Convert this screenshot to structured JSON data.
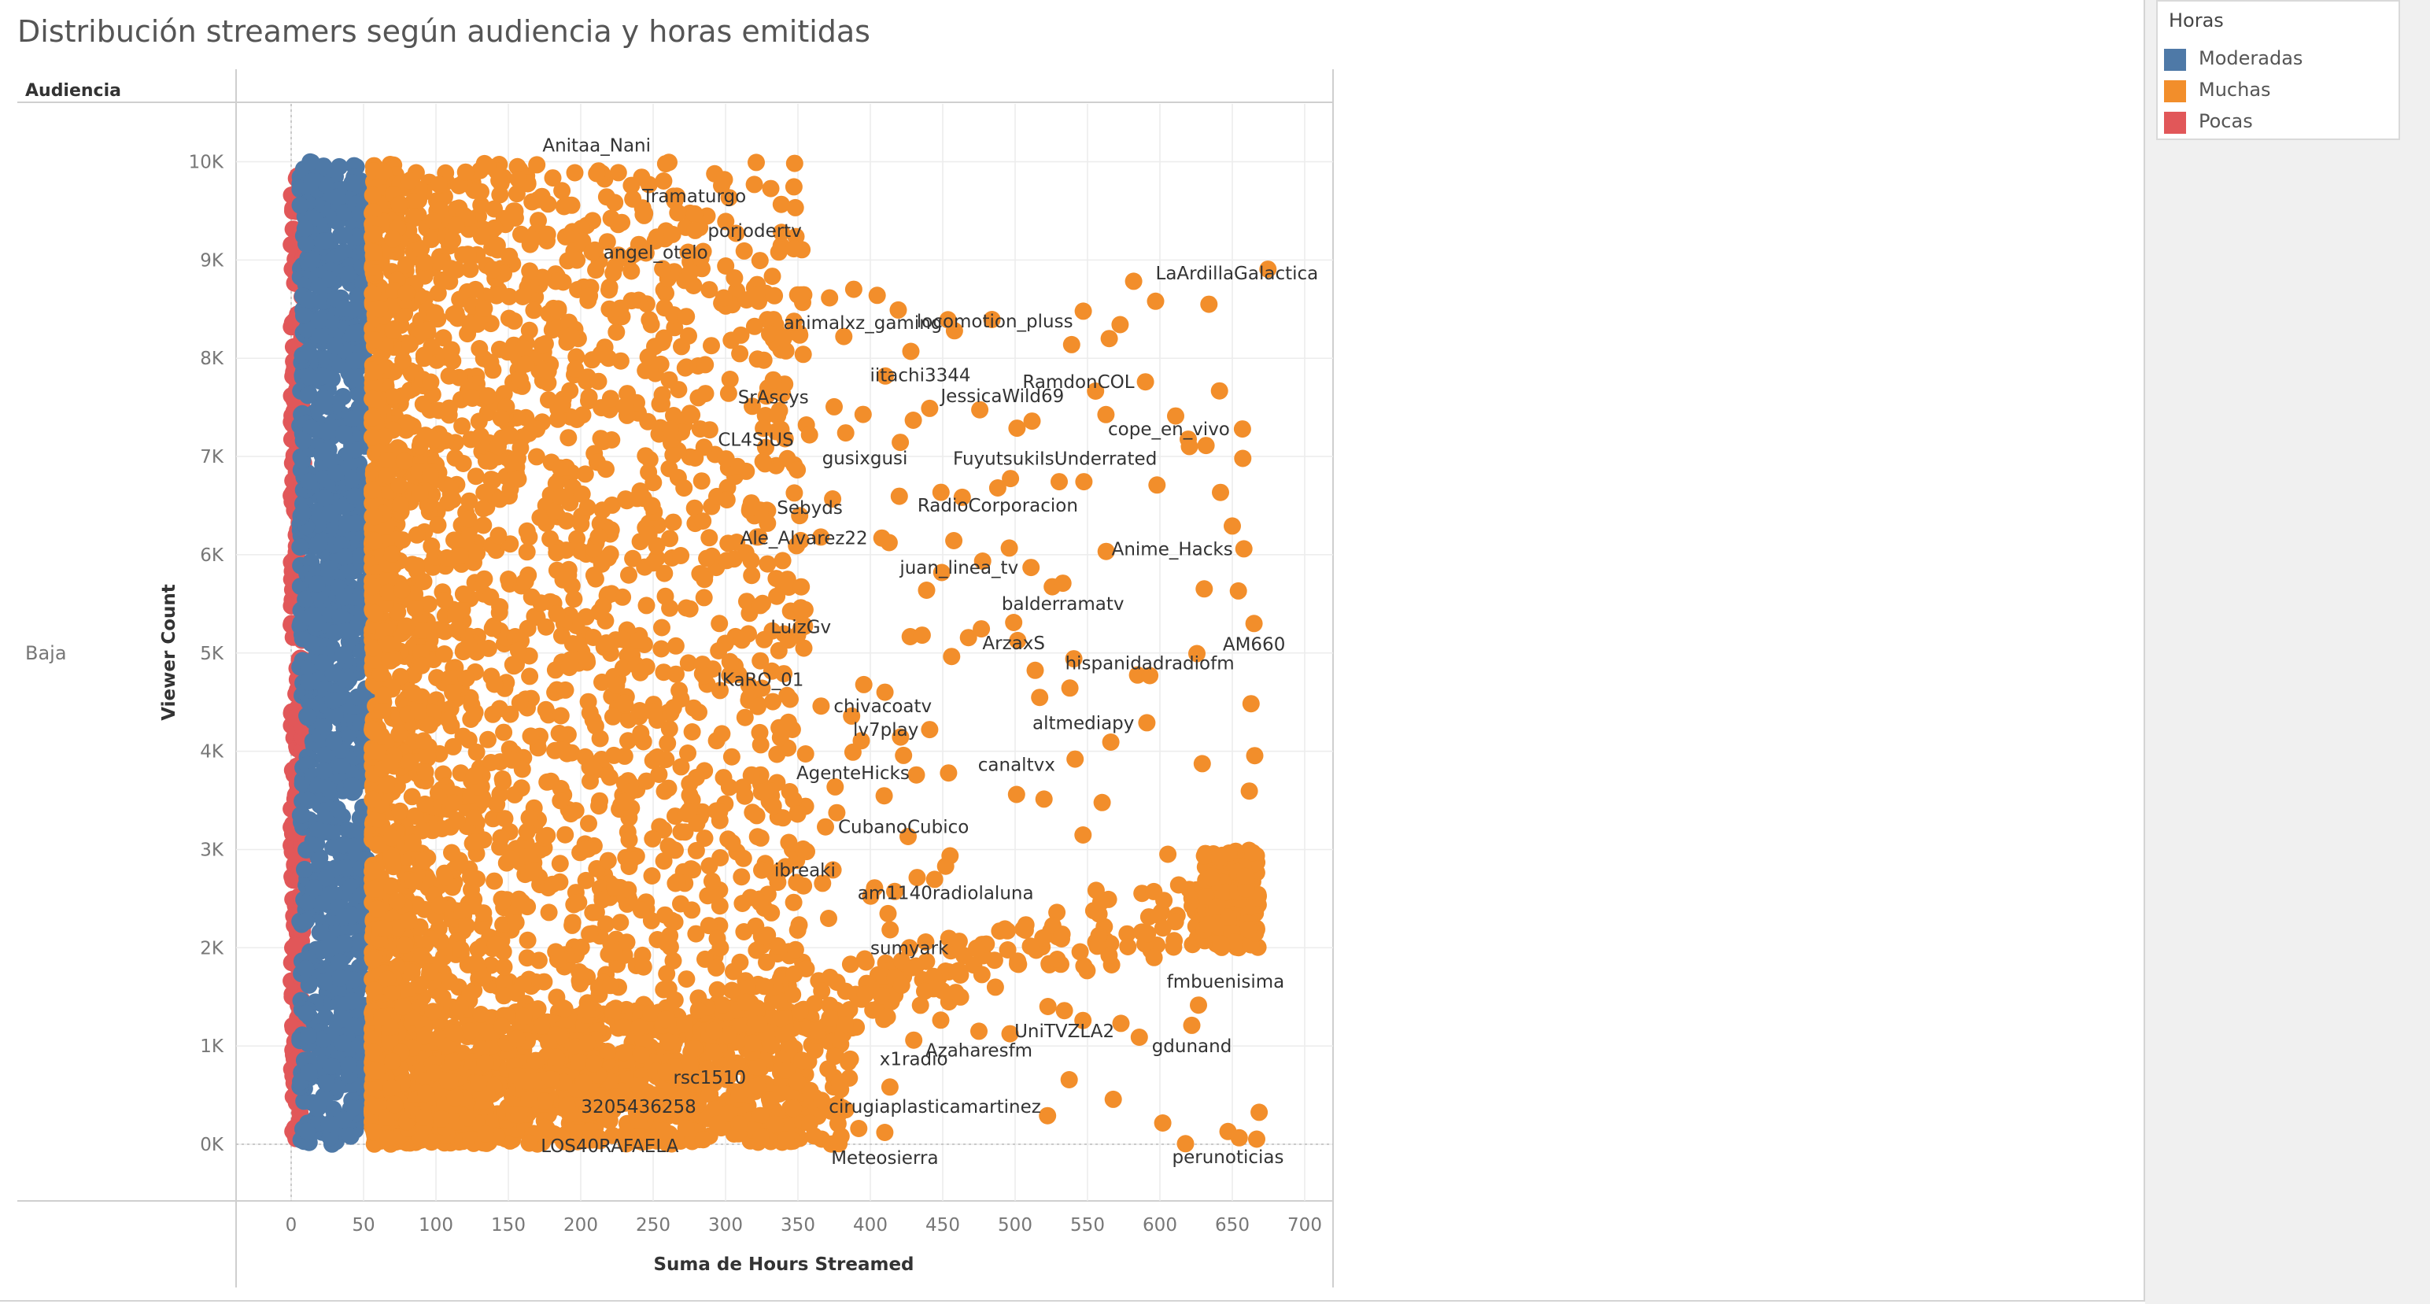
{
  "title": "Distribución streamers según audiencia y horas emitidas",
  "legend": {
    "title": "Horas",
    "items": [
      {
        "label": "Moderadas",
        "color": "#4e79a7"
      },
      {
        "label": "Muchas",
        "color": "#f28e2b"
      },
      {
        "label": "Pocas",
        "color": "#e15759"
      }
    ]
  },
  "row_header": "Audiencia",
  "row_value": "Baja",
  "chart_data": {
    "type": "scatter",
    "xlabel": "Suma de Hours Streamed",
    "ylabel": "Viewer Count",
    "xlim": [
      -20,
      720
    ],
    "ylim": [
      -400,
      10600
    ],
    "x_ticks": [
      0,
      50,
      100,
      150,
      200,
      250,
      300,
      350,
      400,
      450,
      500,
      550,
      600,
      650,
      700
    ],
    "x_tick_labels": [
      "0",
      "50",
      "100",
      "150",
      "200",
      "250",
      "300",
      "350",
      "400",
      "450",
      "500",
      "550",
      "600",
      "650",
      "700"
    ],
    "y_ticks": [
      0,
      1000,
      2000,
      3000,
      4000,
      5000,
      6000,
      7000,
      8000,
      9000,
      10000
    ],
    "y_tick_labels": [
      "0K",
      "1K",
      "2K",
      "3K",
      "4K",
      "5K",
      "6K",
      "7K",
      "8K",
      "9K",
      "10K"
    ],
    "grid": true,
    "legend_position": "top-right (side panel)",
    "series": [
      {
        "name": "Pocas",
        "color": "#e15759",
        "x_range": [
          0,
          9
        ],
        "y_range": [
          0,
          9900
        ],
        "density": "very high"
      },
      {
        "name": "Moderadas",
        "color": "#4e79a7",
        "x_range": [
          4,
          55
        ],
        "y_range": [
          0,
          10000
        ],
        "density": "very high"
      },
      {
        "name": "Muchas",
        "color": "#f28e2b",
        "x_range": [
          55,
          680
        ],
        "y_range": [
          0,
          10000
        ],
        "density": "high, decreasing with hours"
      }
    ],
    "labeled_points": [
      {
        "label": "Anitaa_Nani",
        "x": 211,
        "y": 9880
      },
      {
        "label": "Tramaturgo",
        "x": 236,
        "y": 9620
      },
      {
        "label": "porjodertv",
        "x": 279,
        "y": 9300
      },
      {
        "label": "angel_otelo",
        "x": 208,
        "y": 9080
      },
      {
        "label": "LaArdillaGalactica",
        "x": 597,
        "y": 8580
      },
      {
        "label": "locomotion_pluss",
        "x": 565,
        "y": 8200
      },
      {
        "label": "animalxz_gaming",
        "x": 340,
        "y": 8200
      },
      {
        "label": "iitachi3344",
        "x": 428,
        "y": 8070
      },
      {
        "label": "RamdonCOL",
        "x": 590,
        "y": 7760
      },
      {
        "label": "SrAscys",
        "x": 333,
        "y": 7780
      },
      {
        "label": "CL4SIUS",
        "x": 358,
        "y": 7220
      },
      {
        "label": "JessicaWild69",
        "x": 441,
        "y": 7490
      },
      {
        "label": "cope_en_vivo",
        "x": 657,
        "y": 7280
      },
      {
        "label": "gusixgusi",
        "x": 383,
        "y": 7240
      },
      {
        "label": "FuyutsukiIsUnderrated",
        "x": 598,
        "y": 6710
      },
      {
        "label": "Sebyds",
        "x": 317,
        "y": 6480
      },
      {
        "label": "RadioCorporacion",
        "x": 488,
        "y": 6680
      },
      {
        "label": "Ale_Alvarez22",
        "x": 408,
        "y": 6170
      },
      {
        "label": "Anime_Hacks",
        "x": 658,
        "y": 6060
      },
      {
        "label": "juan_linea_tv",
        "x": 511,
        "y": 5870
      },
      {
        "label": "balderramatv",
        "x": 533,
        "y": 5710
      },
      {
        "label": "LuizGv",
        "x": 352,
        "y": 5460
      },
      {
        "label": "ArzaxS",
        "x": 499,
        "y": 5310
      },
      {
        "label": "AM660",
        "x": 665,
        "y": 5300
      },
      {
        "label": "IKaRO_01",
        "x": 324,
        "y": 4920
      },
      {
        "label": "hispanidadradiofm",
        "x": 593,
        "y": 4770
      },
      {
        "label": "chivacoatv",
        "x": 366,
        "y": 4460
      },
      {
        "label": "altmediapy",
        "x": 591,
        "y": 4290
      },
      {
        "label": "lv7play",
        "x": 441,
        "y": 4220
      },
      {
        "label": "canaltvx",
        "x": 501,
        "y": 3560
      },
      {
        "label": "AgenteHicks",
        "x": 388,
        "y": 3990
      },
      {
        "label": "CubanoCubico",
        "x": 369,
        "y": 3230
      },
      {
        "label": "ibreaki",
        "x": 325,
        "y": 2790
      },
      {
        "label": "am1140radiolaluna",
        "x": 452,
        "y": 2830
      },
      {
        "label": "sumyark",
        "x": 427,
        "y": 2000
      },
      {
        "label": "fmbuenisima",
        "x": 596,
        "y": 1900
      },
      {
        "label": "UniTVZLA2",
        "x": 534,
        "y": 1360
      },
      {
        "label": "Azaharesfm",
        "x": 475,
        "y": 1150
      },
      {
        "label": "x1radio",
        "x": 430,
        "y": 1060
      },
      {
        "label": "gdunand",
        "x": 622,
        "y": 1210
      },
      {
        "label": "rsc1510",
        "x": 289,
        "y": 520
      },
      {
        "label": "cirugiaplasticamartinez",
        "x": 392,
        "y": 160
      },
      {
        "label": "3205436258",
        "x": 240,
        "y": 240
      },
      {
        "label": "LOS40RAFAELA",
        "x": 220,
        "y": 240
      },
      {
        "label": "Meteosierra",
        "x": 410,
        "y": 120
      },
      {
        "label": "perunoticias",
        "x": 647,
        "y": 130
      }
    ]
  }
}
